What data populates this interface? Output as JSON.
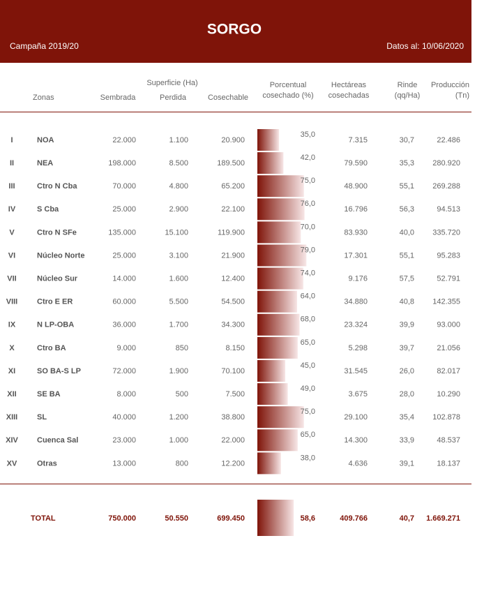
{
  "header": {
    "title": "SORGO",
    "campaign": "Campaña 2019/20",
    "date": "Datos al: 10/06/2020"
  },
  "columns": {
    "group": "Superficie (Ha)",
    "zone": "Zonas",
    "sown": "Sembrada",
    "lost": "Perdida",
    "harvestable": "Cosechable",
    "pct": [
      "Porcentual",
      "cosechado (%)"
    ],
    "ha": [
      "Hectáreas",
      "cosechadas"
    ],
    "yield": [
      "Rinde",
      "(qq/Ha)"
    ],
    "prod": [
      "Producción",
      "(Tn)"
    ]
  },
  "rows": [
    [
      "I",
      "NOA",
      "22.000",
      "1.100",
      "20.900",
      {
        "value": 35,
        "label": "35,0"
      },
      "7.315",
      "30,7",
      "22.486"
    ],
    [
      "II",
      "NEA",
      "198.000",
      "8.500",
      "189.500",
      {
        "value": 42,
        "label": "42,0"
      },
      "79.590",
      "35,3",
      "280.920"
    ],
    [
      "III",
      "Ctro N Cba",
      "70.000",
      "4.800",
      "65.200",
      {
        "value": 75,
        "label": "75,0"
      },
      "48.900",
      "55,1",
      "269.288"
    ],
    [
      "IV",
      "S Cba",
      "25.000",
      "2.900",
      "22.100",
      {
        "value": 76,
        "label": "76,0"
      },
      "16.796",
      "56,3",
      "94.513"
    ],
    [
      "V",
      "Ctro N SFe",
      "135.000",
      "15.100",
      "119.900",
      {
        "value": 70,
        "label": "70,0"
      },
      "83.930",
      "40,0",
      "335.720"
    ],
    [
      "VI",
      "Núcleo Norte",
      "25.000",
      "3.100",
      "21.900",
      {
        "value": 79,
        "label": "79,0"
      },
      "17.301",
      "55,1",
      "95.283"
    ],
    [
      "VII",
      "Núcleo Sur",
      "14.000",
      "1.600",
      "12.400",
      {
        "value": 74,
        "label": "74,0"
      },
      "9.176",
      "57,5",
      "52.791"
    ],
    [
      "VIII",
      "Ctro E ER",
      "60.000",
      "5.500",
      "54.500",
      {
        "value": 64,
        "label": "64,0"
      },
      "34.880",
      "40,8",
      "142.355"
    ],
    [
      "IX",
      "N LP-OBA",
      "36.000",
      "1.700",
      "34.300",
      {
        "value": 68,
        "label": "68,0"
      },
      "23.324",
      "39,9",
      "93.000"
    ],
    [
      "X",
      "Ctro BA",
      "9.000",
      "850",
      "8.150",
      {
        "value": 65,
        "label": "65,0"
      },
      "5.298",
      "39,7",
      "21.056"
    ],
    [
      "XI",
      "SO BA-S LP",
      "72.000",
      "1.900",
      "70.100",
      {
        "value": 45,
        "label": "45,0"
      },
      "31.545",
      "26,0",
      "82.017"
    ],
    [
      "XII",
      "SE BA",
      "8.000",
      "500",
      "7.500",
      {
        "value": 49,
        "label": "49,0"
      },
      "3.675",
      "28,0",
      "10.290"
    ],
    [
      "XIII",
      "SL",
      "40.000",
      "1.200",
      "38.800",
      {
        "value": 75,
        "label": "75,0"
      },
      "29.100",
      "35,4",
      "102.878"
    ],
    [
      "XIV",
      "Cuenca Sal",
      "23.000",
      "1.000",
      "22.000",
      {
        "value": 65,
        "label": "65,0"
      },
      "14.300",
      "33,9",
      "48.537"
    ],
    [
      "XV",
      "Otras",
      "13.000",
      "800",
      "12.200",
      {
        "value": 38,
        "label": "38,0"
      },
      "4.636",
      "39,1",
      "18.137"
    ]
  ],
  "total": [
    "TOTAL",
    "750.000",
    "50.550",
    "699.450",
    {
      "value": 58.6,
      "label": "58,6"
    },
    "409.766",
    "40,7",
    "1.669.271"
  ]
}
